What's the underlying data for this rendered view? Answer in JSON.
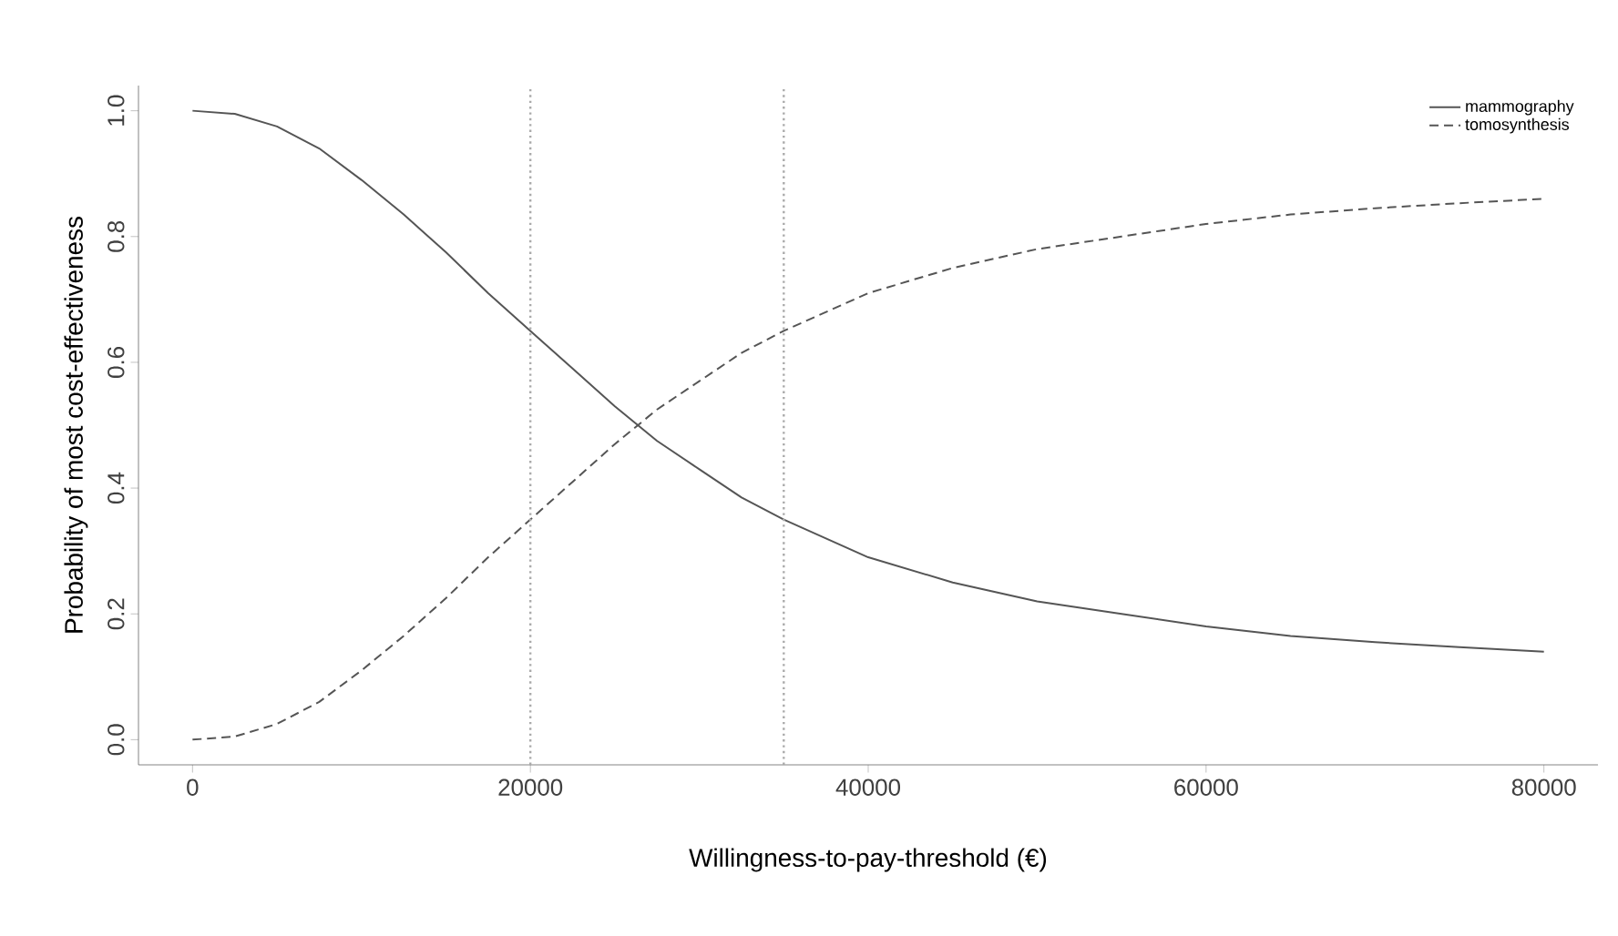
{
  "chart_data": {
    "type": "line",
    "xlabel": "Willingness-to-pay-threshold (€)",
    "ylabel": "Probability of most cost-effectiveness",
    "x": [
      0,
      2500,
      5000,
      7500,
      10000,
      12500,
      15000,
      17500,
      20000,
      22500,
      25000,
      27500,
      30000,
      32500,
      35000,
      40000,
      45000,
      50000,
      55000,
      60000,
      65000,
      70000,
      75000,
      80000
    ],
    "series": [
      {
        "name": "mammography",
        "color": "#555555",
        "line_style": "solid",
        "values": [
          1.0,
          0.995,
          0.975,
          0.94,
          0.89,
          0.835,
          0.775,
          0.71,
          0.65,
          0.59,
          0.53,
          0.475,
          0.43,
          0.385,
          0.35,
          0.29,
          0.25,
          0.22,
          0.2,
          0.18,
          0.165,
          0.155,
          0.147,
          0.14
        ]
      },
      {
        "name": "tomosynthesis",
        "color": "#555555",
        "line_style": "dashed",
        "values": [
          0.0,
          0.005,
          0.025,
          0.06,
          0.11,
          0.165,
          0.225,
          0.29,
          0.35,
          0.41,
          0.47,
          0.525,
          0.57,
          0.615,
          0.65,
          0.71,
          0.75,
          0.78,
          0.8,
          0.82,
          0.835,
          0.845,
          0.853,
          0.86
        ]
      }
    ],
    "xlim": [
      -3200,
      83200
    ],
    "ylim": [
      -0.04,
      1.04
    ],
    "xticks": [
      0,
      20000,
      40000,
      60000,
      80000
    ],
    "yticks": [
      {
        "value": 0,
        "label": "0.0"
      },
      {
        "value": 0.2,
        "label": "0.2"
      },
      {
        "value": 0.4,
        "label": "0.4"
      },
      {
        "value": 0.6,
        "label": "0.6"
      },
      {
        "value": 0.8,
        "label": "0.8"
      },
      {
        "value": 1,
        "label": "1.0"
      }
    ],
    "ref_lines": [
      {
        "axis": "x",
        "value": 20000,
        "color": "#aaaaaa",
        "line_style": "dotted"
      },
      {
        "axis": "x",
        "value": 35000,
        "color": "#aaaaaa",
        "line_style": "dotted"
      }
    ],
    "legend": "top right",
    "grid": false
  }
}
